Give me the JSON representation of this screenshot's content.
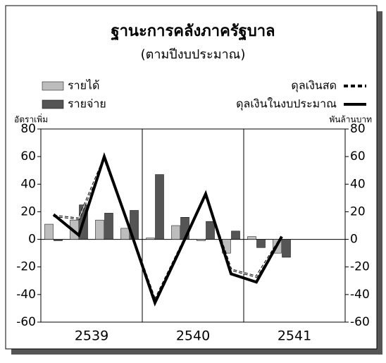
{
  "chart_data": {
    "type": "bar",
    "title": "ฐานะการคลังภาครัฐบาล",
    "subtitle": "(ตามปีงบประมาณ)",
    "ylabel": "อัตราเพิ่ม",
    "y2label": "พันล้านบาท",
    "groups": [
      "2539",
      "2540",
      "2541"
    ],
    "categories": [
      null,
      null,
      null,
      null,
      null,
      null,
      null,
      null,
      null,
      null,
      null,
      null
    ],
    "series": [
      {
        "name": "รายได้",
        "type": "bar",
        "color": "#bdbdbd",
        "values": [
          11,
          14,
          14,
          8,
          1,
          10,
          -1,
          -10,
          2,
          -10,
          null,
          null
        ]
      },
      {
        "name": "รายจ่าย",
        "type": "bar",
        "color": "#555555",
        "values": [
          -1,
          25,
          19,
          21,
          47,
          16,
          13,
          6,
          -6,
          -13,
          null,
          null
        ]
      },
      {
        "name": "ดุลเงินสด",
        "type": "line",
        "style": "dashed",
        "color": "#000000",
        "values": [
          17,
          15,
          59,
          8,
          -44,
          -6,
          32,
          -22,
          -27,
          2,
          null,
          null
        ]
      },
      {
        "name": "ดุลเงินในงบประมาณ",
        "type": "line",
        "style": "solid",
        "color": "#000000",
        "values": [
          18,
          3,
          60,
          8,
          -46,
          -7,
          33,
          -25,
          -31,
          2,
          null,
          null
        ]
      }
    ],
    "ylim": [
      -60,
      80
    ],
    "yticks": [
      -60,
      -40,
      -20,
      0,
      20,
      40,
      60,
      80
    ],
    "y2lim": [
      -60,
      80
    ],
    "y2ticks": [
      -60,
      -40,
      -20,
      0,
      20,
      40,
      60,
      80
    ]
  }
}
